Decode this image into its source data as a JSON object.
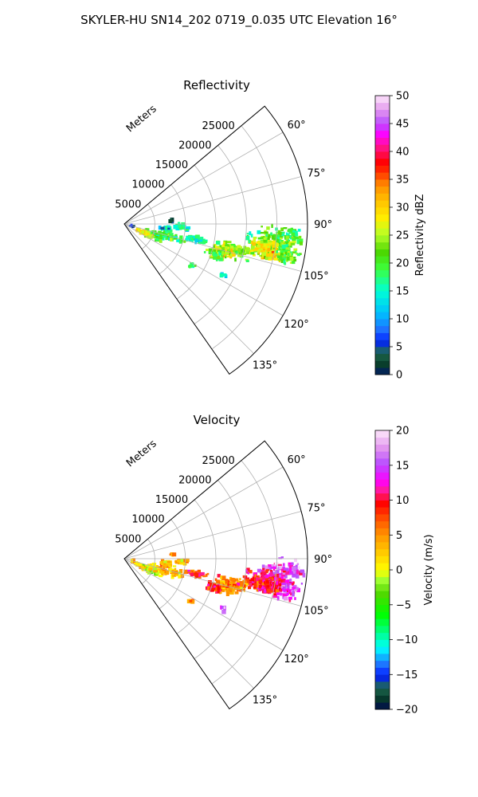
{
  "figure": {
    "title": "SKYLER-HU  SN14_202  0719_0.035 UTC Elevation 16°"
  },
  "chart_data": [
    {
      "type": "polar_sector_heatmap",
      "panel": "top",
      "title": "Reflectivity",
      "radial_label": "Meters",
      "radial_ticks": [
        5000,
        10000,
        15000,
        20000,
        25000
      ],
      "radial_tick_labels": [
        "5000",
        "10000",
        "15000",
        "20000",
        "25000"
      ],
      "rlim": [
        0,
        30000
      ],
      "theta_range_deg": [
        50,
        145
      ],
      "theta_ticks": [
        60,
        75,
        90,
        105,
        120,
        135
      ],
      "theta_tick_labels": [
        "60°",
        "75°",
        "90°",
        "105°",
        "120°",
        "135°"
      ],
      "grid": true,
      "colorbar": {
        "label": "Reflectivity dBZ",
        "range": [
          0,
          50
        ],
        "ticks": [
          0,
          5,
          10,
          15,
          20,
          25,
          30,
          35,
          40,
          45,
          50
        ],
        "tick_labels": [
          "0",
          "5",
          "10",
          "15",
          "20",
          "25",
          "30",
          "35",
          "40",
          "45",
          "50"
        ]
      },
      "cells": [
        {
          "theta": 94,
          "r": 25800,
          "val": 20,
          "n": 60,
          "sp": 1.6,
          "sr": 1700
        },
        {
          "theta": 94,
          "r": 28000,
          "val": 20,
          "n": 18,
          "sp": 1.0,
          "sr": 600
        },
        {
          "theta": 98.5,
          "r": 24800,
          "val": 22,
          "n": 140,
          "sp": 2.0,
          "sr": 1600
        },
        {
          "theta": 100,
          "r": 23000,
          "val": 27,
          "n": 120,
          "sp": 1.5,
          "sr": 1200
        },
        {
          "theta": 101.5,
          "r": 24600,
          "val": 29,
          "n": 60,
          "sp": 1.1,
          "sr": 1000
        },
        {
          "theta": 100.5,
          "r": 27200,
          "val": 22,
          "n": 60,
          "sp": 1.6,
          "sr": 800
        },
        {
          "theta": 103,
          "r": 18500,
          "val": 22,
          "n": 80,
          "sp": 1.5,
          "sr": 1300
        },
        {
          "theta": 105.5,
          "r": 17000,
          "val": 27,
          "n": 70,
          "sp": 1.7,
          "sr": 900
        },
        {
          "theta": 108,
          "r": 15700,
          "val": 21,
          "n": 40,
          "sp": 1.5,
          "sr": 700
        },
        {
          "theta": 102,
          "r": 12200,
          "val": 16,
          "n": 40,
          "sp": 1.0,
          "sr": 900
        },
        {
          "theta": 106,
          "r": 8200,
          "val": 20,
          "n": 40,
          "sp": 2.2,
          "sr": 1000
        },
        {
          "theta": 110,
          "r": 5500,
          "val": 20,
          "n": 50,
          "sp": 3.5,
          "sr": 900
        },
        {
          "theta": 114,
          "r": 4000,
          "val": 28,
          "n": 40,
          "sp": 2.2,
          "sr": 900
        },
        {
          "theta": 98,
          "r": 7000,
          "val": 16,
          "n": 25,
          "sp": 1.3,
          "sr": 500
        },
        {
          "theta": 93,
          "r": 9500,
          "val": 17,
          "n": 20,
          "sp": 1.5,
          "sr": 500
        },
        {
          "theta": 95,
          "r": 6800,
          "val": 12,
          "n": 14,
          "sp": 1.2,
          "sr": 400
        },
        {
          "theta": 122,
          "r": 13000,
          "val": 18,
          "n": 8,
          "sp": 1.0,
          "sr": 400
        },
        {
          "theta": 117,
          "r": 18300,
          "val": 16,
          "n": 6,
          "sp": 0.8,
          "sr": 300
        },
        {
          "theta": 85,
          "r": 7800,
          "val": 3,
          "n": 5,
          "sp": 0.8,
          "sr": 200
        },
        {
          "theta": 106,
          "r": 1300,
          "val": 5,
          "n": 5,
          "sp": 3.0,
          "sr": 200
        },
        {
          "theta": 96,
          "r": 20400,
          "val": 18,
          "n": 6,
          "sp": 1.0,
          "sr": 300
        }
      ]
    },
    {
      "type": "polar_sector_heatmap",
      "panel": "bottom",
      "title": "Velocity",
      "radial_label": "Meters",
      "radial_ticks": [
        5000,
        10000,
        15000,
        20000,
        25000
      ],
      "radial_tick_labels": [
        "5000",
        "10000",
        "15000",
        "20000",
        "25000"
      ],
      "rlim": [
        0,
        30000
      ],
      "theta_range_deg": [
        50,
        145
      ],
      "theta_ticks": [
        60,
        75,
        90,
        105,
        120,
        135
      ],
      "theta_tick_labels": [
        "60°",
        "75°",
        "90°",
        "105°",
        "120°",
        "135°"
      ],
      "grid": true,
      "colorbar": {
        "label": "Velocity (m/s)",
        "range": [
          -20,
          20
        ],
        "ticks": [
          -20,
          -15,
          -10,
          -5,
          0,
          5,
          10,
          15,
          20
        ],
        "tick_labels": [
          "−20",
          "−15",
          "−10",
          "−5",
          "0",
          "5",
          "10",
          "15",
          "20"
        ]
      },
      "cells": [
        {
          "theta": 94,
          "r": 25800,
          "val": 15,
          "n": 60,
          "sp": 1.6,
          "sr": 1700
        },
        {
          "theta": 94,
          "r": 28000,
          "val": 14,
          "n": 18,
          "sp": 1.0,
          "sr": 600
        },
        {
          "theta": 98.5,
          "r": 24800,
          "val": 12,
          "n": 140,
          "sp": 2.0,
          "sr": 1600
        },
        {
          "theta": 100,
          "r": 23000,
          "val": 10,
          "n": 120,
          "sp": 1.5,
          "sr": 1200
        },
        {
          "theta": 101.5,
          "r": 24600,
          "val": 11,
          "n": 60,
          "sp": 1.1,
          "sr": 1000
        },
        {
          "theta": 100.5,
          "r": 27200,
          "val": 14,
          "n": 60,
          "sp": 1.6,
          "sr": 800
        },
        {
          "theta": 103,
          "r": 18500,
          "val": 6,
          "n": 80,
          "sp": 1.5,
          "sr": 1300
        },
        {
          "theta": 105.5,
          "r": 17000,
          "val": 4,
          "n": 70,
          "sp": 1.7,
          "sr": 900
        },
        {
          "theta": 108,
          "r": 15700,
          "val": 9,
          "n": 40,
          "sp": 1.5,
          "sr": 700
        },
        {
          "theta": 102,
          "r": 12200,
          "val": 8,
          "n": 40,
          "sp": 1.0,
          "sr": 900
        },
        {
          "theta": 106,
          "r": 8200,
          "val": 3,
          "n": 40,
          "sp": 2.2,
          "sr": 1000
        },
        {
          "theta": 110,
          "r": 5500,
          "val": 1,
          "n": 50,
          "sp": 3.5,
          "sr": 900
        },
        {
          "theta": 114,
          "r": 4000,
          "val": 0,
          "n": 40,
          "sp": 2.2,
          "sr": 900
        },
        {
          "theta": 98,
          "r": 7000,
          "val": 4,
          "n": 25,
          "sp": 1.3,
          "sr": 500
        },
        {
          "theta": 93,
          "r": 9500,
          "val": 5,
          "n": 20,
          "sp": 1.5,
          "sr": 500
        },
        {
          "theta": 95,
          "r": 6800,
          "val": 3,
          "n": 14,
          "sp": 1.2,
          "sr": 400
        },
        {
          "theta": 122,
          "r": 13000,
          "val": 5,
          "n": 8,
          "sp": 1.0,
          "sr": 400
        },
        {
          "theta": 117,
          "r": 18300,
          "val": 15,
          "n": 6,
          "sp": 0.8,
          "sr": 300
        },
        {
          "theta": 85,
          "r": 7800,
          "val": 6,
          "n": 5,
          "sp": 0.8,
          "sr": 200
        },
        {
          "theta": 106,
          "r": 1300,
          "val": 1,
          "n": 5,
          "sp": 3.0,
          "sr": 200
        },
        {
          "theta": 96,
          "r": 20400,
          "val": 11,
          "n": 6,
          "sp": 1.0,
          "sr": 300
        }
      ]
    }
  ]
}
